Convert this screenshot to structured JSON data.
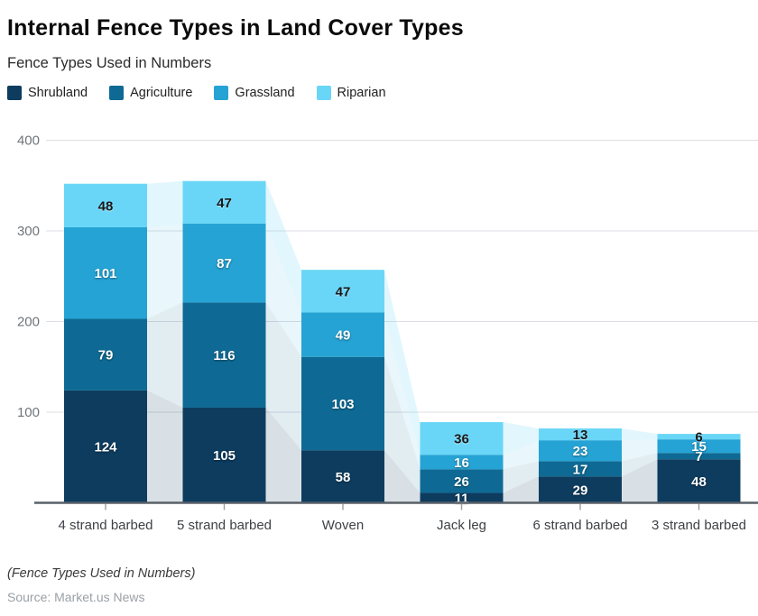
{
  "header": {
    "title": "Internal Fence Types in Land Cover Types",
    "subtitle": "Fence Types Used in Numbers"
  },
  "legend": [
    {
      "label": "Shrubland",
      "color": "#0d3c5f"
    },
    {
      "label": "Agriculture",
      "color": "#0e6a94"
    },
    {
      "label": "Grassland",
      "color": "#25a3d4"
    },
    {
      "label": "Riparian",
      "color": "#69d6f7"
    }
  ],
  "chart_data": {
    "type": "bar",
    "stacked": true,
    "title": "Internal Fence Types in Land Cover Types",
    "subtitle": "Fence Types Used in Numbers",
    "categories": [
      "4 strand barbed",
      "5 strand barbed",
      "Woven",
      "Jack leg",
      "6 strand barbed",
      "3 strand barbed"
    ],
    "series": [
      {
        "name": "Shrubland",
        "color": "#0d3c5f",
        "values": [
          124,
          105,
          58,
          11,
          29,
          48
        ]
      },
      {
        "name": "Agriculture",
        "color": "#0e6a94",
        "values": [
          79,
          116,
          103,
          26,
          17,
          7
        ]
      },
      {
        "name": "Grassland",
        "color": "#25a3d4",
        "values": [
          101,
          87,
          49,
          16,
          23,
          15
        ]
      },
      {
        "name": "Riparian",
        "color": "#69d6f7",
        "values": [
          48,
          47,
          47,
          36,
          13,
          6
        ]
      }
    ],
    "totals": [
      352,
      355,
      257,
      89,
      82,
      76
    ],
    "ylim": [
      0,
      400
    ],
    "yticks": [
      100,
      200,
      300,
      400
    ],
    "grid": true,
    "legend_position": "top",
    "background_area_silhouette": true
  },
  "footer": {
    "note": "(Fence Types Used in Numbers)",
    "source": "Source: Market.us News"
  }
}
